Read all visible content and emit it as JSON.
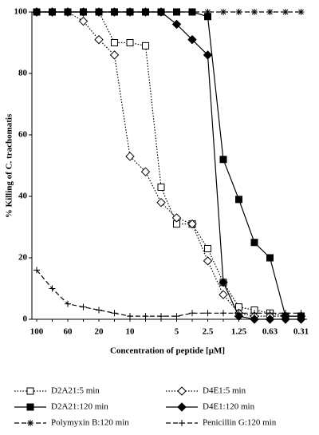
{
  "chart_data": {
    "type": "line",
    "y_label": "% Killing of C. trachomatis",
    "x_label": "Concentration of peptide [μM]",
    "categories": [
      "100",
      null,
      "60",
      null,
      "20",
      null,
      "10",
      null,
      null,
      "5",
      null,
      "2.5",
      null,
      "1.25",
      null,
      "0.63",
      null,
      "0.31"
    ],
    "ylim": [
      0,
      100
    ],
    "yticks": [
      0,
      20,
      40,
      60,
      80,
      100
    ],
    "series": [
      {
        "name": "D2A21:5 min",
        "color": "#000000",
        "marker": "square-open",
        "dash": "dotted",
        "values": [
          100,
          100,
          100,
          100,
          100,
          90,
          90,
          89,
          43,
          31,
          31,
          23,
          12,
          4,
          3,
          2,
          1,
          1
        ]
      },
      {
        "name": "D4E1:5 min",
        "color": "#000000",
        "marker": "diamond-open",
        "dash": "dotted",
        "values": [
          100,
          100,
          100,
          97,
          91,
          86,
          53,
          48,
          38,
          33,
          31,
          19,
          8,
          2,
          1,
          1,
          1,
          1
        ]
      },
      {
        "name": "D2A21:120 min",
        "color": "#000000",
        "marker": "square-filled",
        "dash": "solid",
        "values": [
          100,
          100,
          100,
          100,
          100,
          100,
          100,
          100,
          100,
          100,
          100,
          98.5,
          52,
          39,
          25,
          20,
          1,
          1
        ]
      },
      {
        "name": "D4E1:120 min",
        "color": "#000000",
        "marker": "diamond-filled",
        "dash": "solid",
        "values": [
          100,
          100,
          100,
          100,
          100,
          100,
          100,
          100,
          100,
          96,
          91,
          86,
          12,
          1,
          0,
          0,
          0,
          0
        ]
      },
      {
        "name": "Polymyxin B:120 min",
        "color": "#000000",
        "marker": "asterisk",
        "dash": "dashed",
        "values": [
          100,
          100,
          100,
          100,
          100,
          100,
          100,
          100,
          100,
          100,
          100,
          100,
          100,
          100,
          100,
          100,
          100,
          100
        ]
      },
      {
        "name": "Penicillin G:120 min",
        "color": "#000000",
        "marker": "plus",
        "dash": "dashed",
        "values": [
          16,
          10,
          5,
          4,
          3,
          2,
          1,
          1,
          1,
          1,
          2,
          2,
          2,
          2,
          2,
          2,
          2,
          2
        ]
      }
    ]
  }
}
